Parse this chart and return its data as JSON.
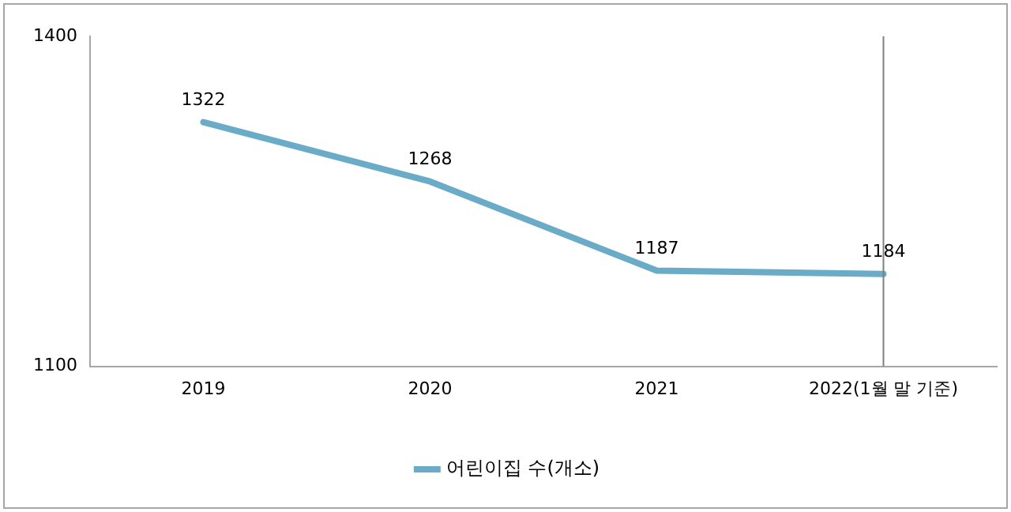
{
  "chart_data": {
    "type": "line",
    "categories": [
      "2019",
      "2020",
      "2021",
      "2022(1월 말 기준)"
    ],
    "series": [
      {
        "name": "어린이집 수(개소)",
        "color": "#6aabc8",
        "values": [
          1322,
          1268,
          1187,
          1184
        ]
      }
    ],
    "ylim": [
      1100,
      1400
    ],
    "yticks": [
      1100,
      1400
    ],
    "grid": false,
    "legend": "bottom",
    "marker": "none",
    "line_style": "solid",
    "data_labels": true,
    "ref_lines": [
      {
        "axis": "x",
        "value": "2022(1월 말 기준)",
        "color": "#7f7f7f"
      }
    ]
  }
}
